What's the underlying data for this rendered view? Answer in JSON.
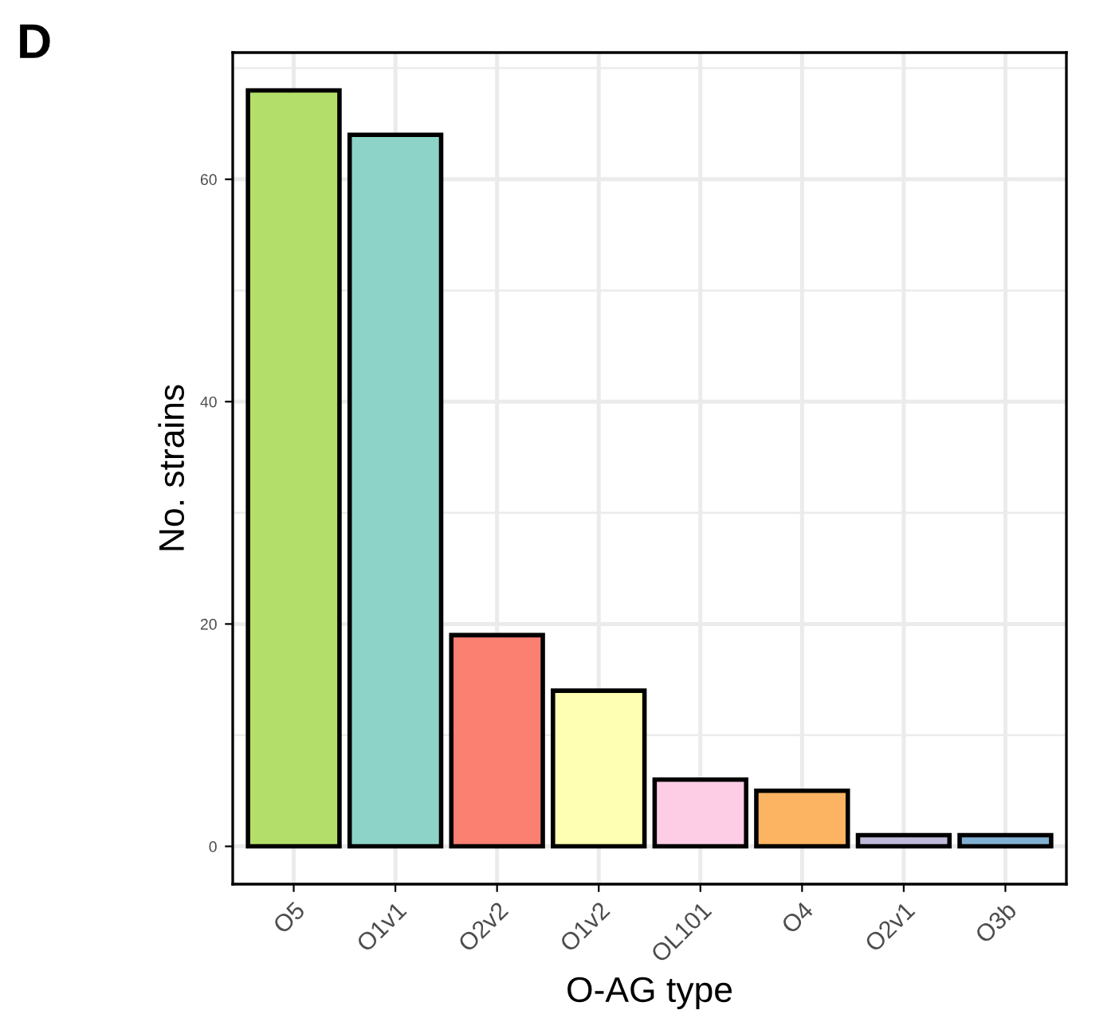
{
  "chart_data": {
    "type": "bar",
    "xlabel": "O-AG type",
    "ylabel": "No. strains",
    "annotations": [
      "D"
    ],
    "categories": [
      "O5",
      "O1v1",
      "O2v2",
      "O1v2",
      "OL101",
      "O4",
      "O2v1",
      "O3b"
    ],
    "values": [
      68,
      64,
      19,
      14,
      6,
      5,
      1,
      1
    ],
    "colors": [
      "#b3de69",
      "#8dd3c7",
      "#fb8072",
      "#ffffb3",
      "#fccde5",
      "#fdb462",
      "#bebada",
      "#80b1d3"
    ],
    "ylim": [
      -3.4,
      71.4
    ],
    "yticks": [
      0,
      20,
      40,
      60
    ],
    "grid": true
  }
}
